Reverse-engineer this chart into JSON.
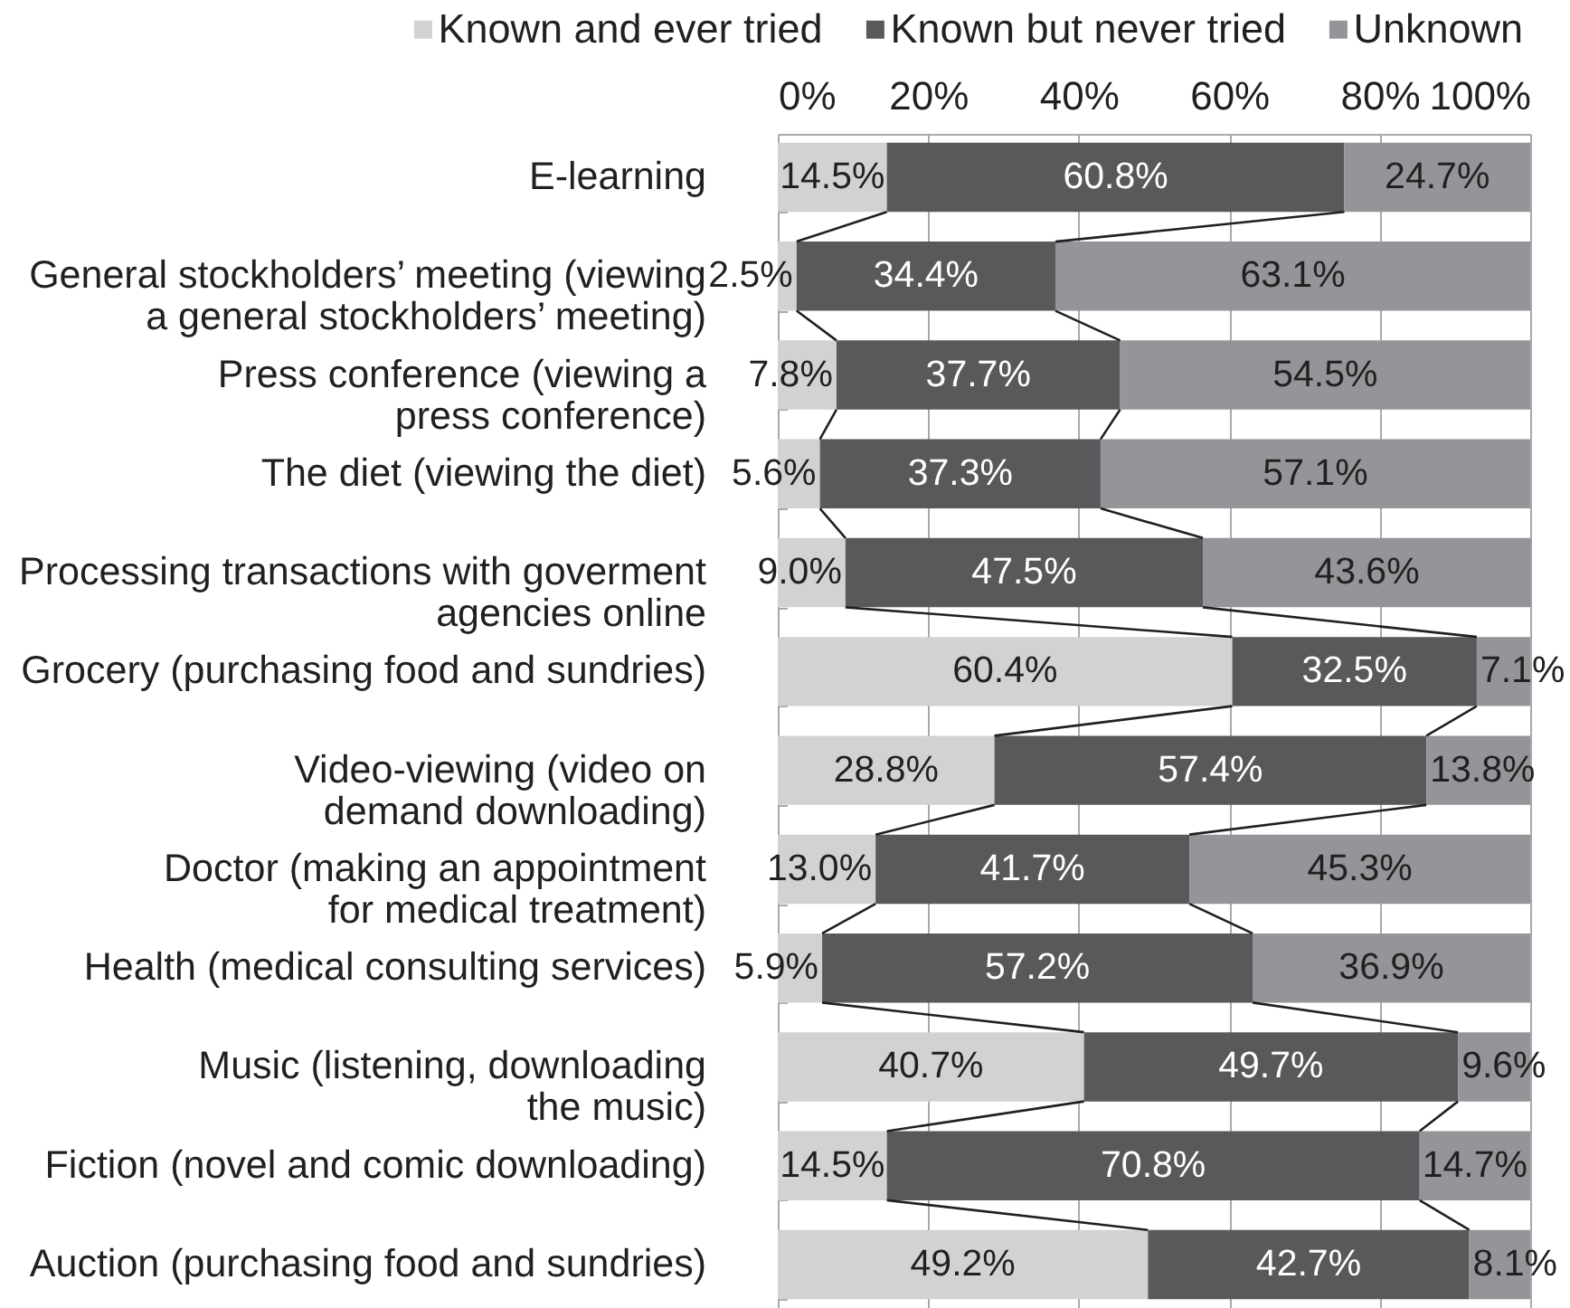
{
  "chart_data": {
    "type": "bar",
    "orientation": "horizontal",
    "stacked": true,
    "categories": [
      "E-learning",
      "General stockholders’ meeting (viewing\na general stockholders’ meeting)",
      "Press conference (viewing a\npress conference)",
      "The diet (viewing the diet)",
      "Processing transactions with goverment\nagencies online",
      "Grocery (purchasing food and sundries)",
      "Video-viewing (video on\ndemand downloading)",
      "Doctor (making an appointment\nfor medical treatment)",
      "Health (medical consulting services)",
      "Music (listening, downloading\nthe music)",
      "Fiction (novel and comic downloading)",
      "Auction (purchasing food and sundries)"
    ],
    "series": [
      {
        "name": "Known and ever tried",
        "color": "#d1d2d4",
        "values": [
          14.5,
          2.5,
          7.8,
          5.6,
          9.0,
          60.4,
          28.8,
          13.0,
          5.9,
          40.7,
          14.5,
          49.2
        ],
        "value_labels": [
          "14.5%",
          "2.5%",
          "7.8%",
          "5.6%",
          "9.0%",
          "60.4%",
          "28.8%",
          "13.0%",
          "5.9%",
          "40.7%",
          "14.5%",
          "49.2%"
        ]
      },
      {
        "name": "Known but never tried",
        "color": "#58595b",
        "values": [
          60.8,
          34.4,
          37.7,
          37.3,
          47.5,
          32.5,
          57.4,
          41.7,
          57.2,
          49.7,
          70.8,
          42.7
        ],
        "value_labels": [
          "60.8%",
          "34.4%",
          "37.7%",
          "37.3%",
          "47.5%",
          "32.5%",
          "57.4%",
          "41.7%",
          "57.2%",
          "49.7%",
          "70.8%",
          "42.7%"
        ]
      },
      {
        "name": "Unknown",
        "color": "#939598",
        "values": [
          24.7,
          63.1,
          54.5,
          57.1,
          43.6,
          7.1,
          13.8,
          45.3,
          36.9,
          9.6,
          14.7,
          8.1
        ],
        "value_labels": [
          "24.7%",
          "63.1%",
          "54.5%",
          "57.1%",
          "43.6%",
          "7.1%",
          "13.8%",
          "45.3%",
          "36.9%",
          "9.6%",
          "14.7%",
          "8.1%"
        ]
      }
    ],
    "xlim": [
      0,
      100
    ],
    "xticks": [
      {
        "value": 0,
        "label": "0%"
      },
      {
        "value": 20,
        "label": "20%"
      },
      {
        "value": 40,
        "label": "40%"
      },
      {
        "value": 60,
        "label": "60%"
      },
      {
        "value": 80,
        "label": "80%"
      },
      {
        "value": 100,
        "label": "100%"
      }
    ],
    "grid": "x",
    "legend": "top"
  }
}
